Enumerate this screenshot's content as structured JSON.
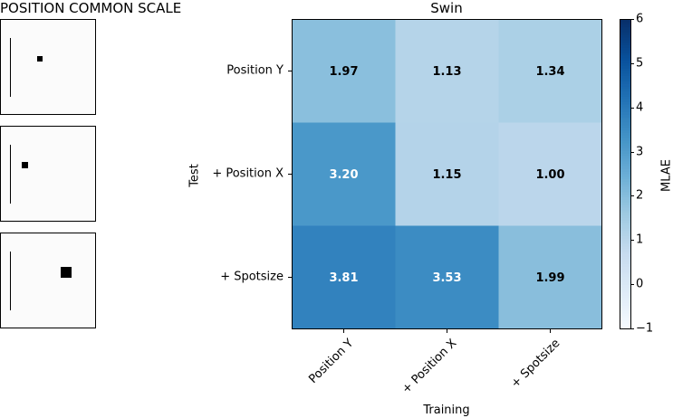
{
  "left_panel": {
    "title": "POSITION COMMON SCALE"
  },
  "chart_data": {
    "type": "heatmap",
    "title": "Swin",
    "xlabel": "Training",
    "ylabel": "Test",
    "x_categories": [
      "Position Y",
      "+ Position X",
      "+ Spotsize"
    ],
    "y_categories": [
      "Position Y",
      "+ Position X",
      "+ Spotsize"
    ],
    "values": [
      [
        1.97,
        1.13,
        1.34
      ],
      [
        3.2,
        1.15,
        1.0
      ],
      [
        3.81,
        3.53,
        1.99
      ]
    ],
    "value_labels": [
      [
        "1.97",
        "1.13",
        "1.34"
      ],
      [
        "3.20",
        "1.15",
        "1.00"
      ],
      [
        "3.81",
        "3.53",
        "1.99"
      ]
    ],
    "colorbar": {
      "label": "MLAE",
      "min": -1,
      "max": 6,
      "ticks": [
        "−1",
        "0",
        "1",
        "2",
        "3",
        "4",
        "5",
        "6"
      ],
      "colormap": "Blues"
    }
  }
}
